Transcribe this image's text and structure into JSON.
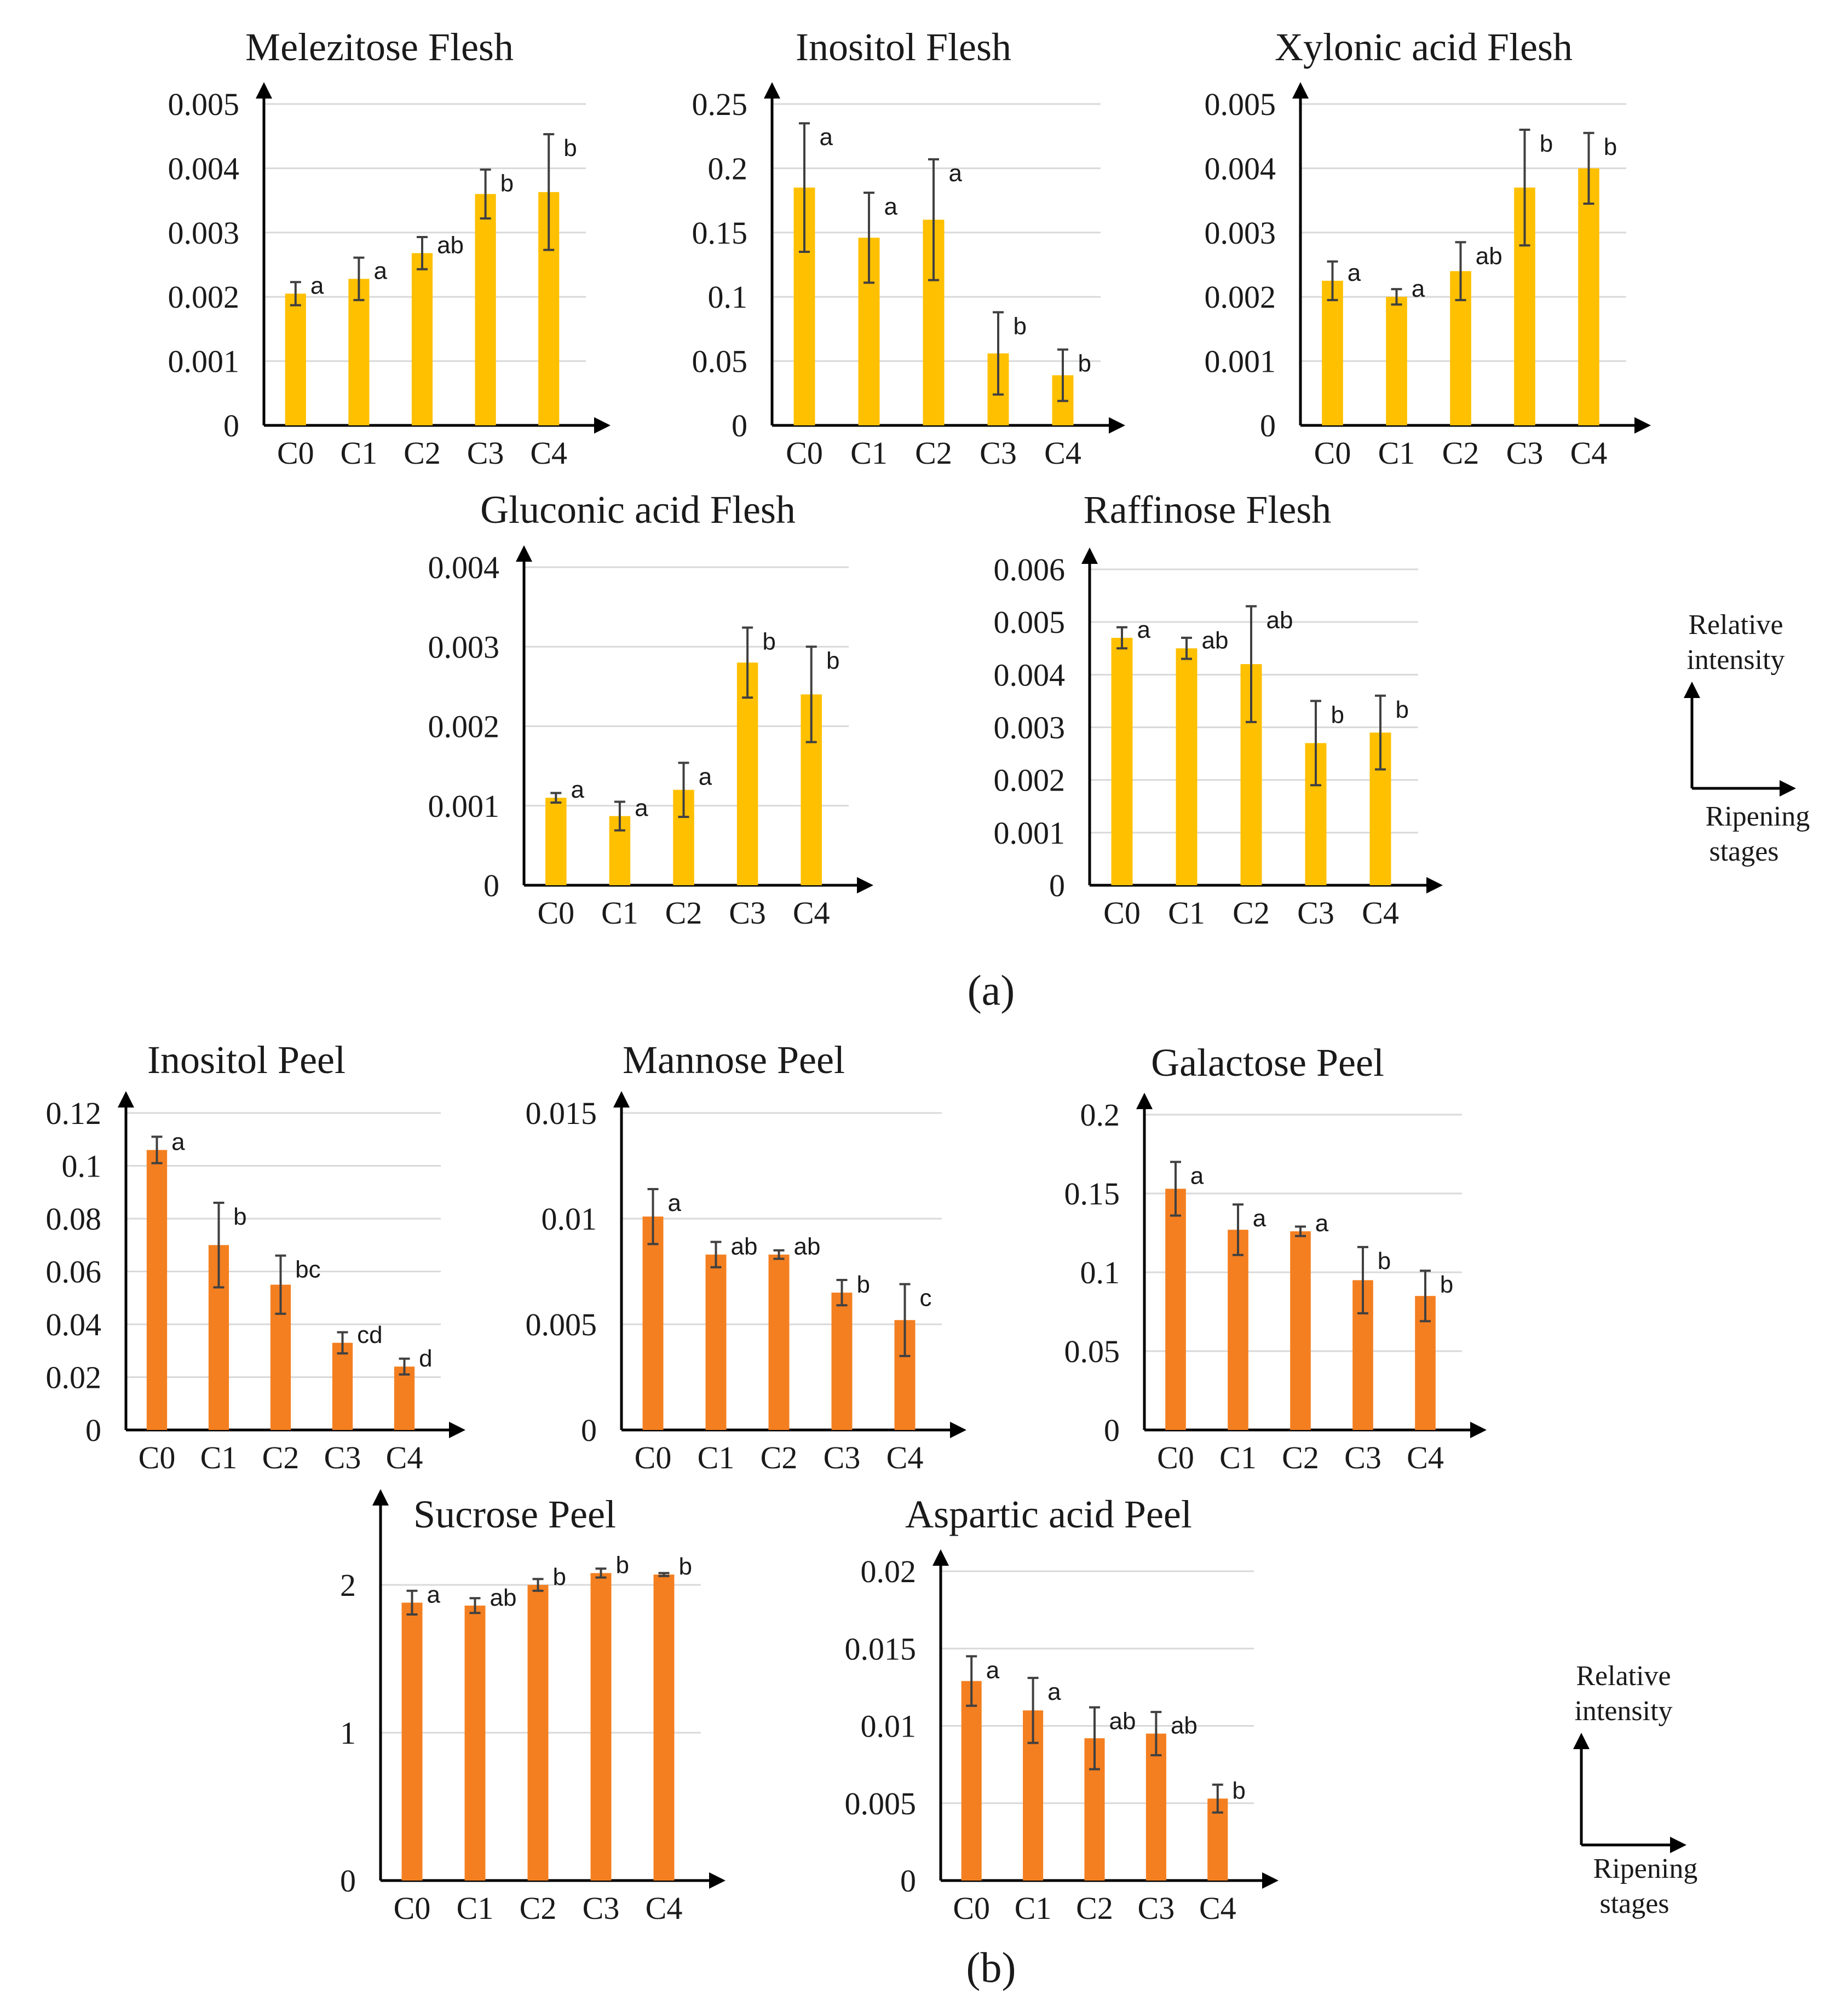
{
  "figure": {
    "panel_labels": [
      "(a)",
      "(b)"
    ],
    "legend_a": {
      "y_label_line1": "Relative",
      "y_label_line2": "intensity",
      "x_label_line1": "Ripening",
      "x_label_line2": "stages"
    },
    "legend_b": {
      "y_label_line1": "Relative",
      "y_label_line2": "intensity",
      "x_label_line1": "Ripening",
      "x_label_line2": "stages"
    }
  },
  "colors": {
    "flesh_bar": "#FFC000",
    "peel_bar": "#F47F20",
    "error_bar": "#404040",
    "grid": "#d9d9d9",
    "axis": "#000000"
  },
  "chart_data": [
    {
      "type": "bar",
      "title": "Melezitose Flesh",
      "group": "a",
      "categories": [
        "C0",
        "C1",
        "C2",
        "C3",
        "C4"
      ],
      "values": [
        0.00205,
        0.00228,
        0.00268,
        0.0036,
        0.00363
      ],
      "errors": [
        0.00018,
        0.00033,
        0.00025,
        0.00038,
        0.0009
      ],
      "significance": [
        "a",
        "a",
        "ab",
        "b",
        "b"
      ],
      "ylim": [
        0,
        0.005
      ],
      "yticks": [
        "0",
        "0.001",
        "0.002",
        "0.003",
        "0.004",
        "0.005"
      ],
      "xlabel": "",
      "ylabel": ""
    },
    {
      "type": "bar",
      "title": "Inositol Flesh",
      "group": "a",
      "categories": [
        "C0",
        "C1",
        "C2",
        "C3",
        "C4"
      ],
      "values": [
        0.185,
        0.146,
        0.16,
        0.056,
        0.039
      ],
      "errors": [
        0.05,
        0.035,
        0.047,
        0.032,
        0.02
      ],
      "significance": [
        "a",
        "a",
        "a",
        "b",
        "b"
      ],
      "ylim": [
        0,
        0.25
      ],
      "yticks": [
        "0",
        "0.05",
        "0.1",
        "0.15",
        "0.2",
        "0.25"
      ],
      "xlabel": "",
      "ylabel": ""
    },
    {
      "type": "bar",
      "title": "Xylonic acid Flesh",
      "group": "a",
      "categories": [
        "C0",
        "C1",
        "C2",
        "C3",
        "C4"
      ],
      "values": [
        0.00225,
        0.002,
        0.0024,
        0.0037,
        0.004
      ],
      "errors": [
        0.0003,
        0.00012,
        0.00045,
        0.0009,
        0.00055
      ],
      "significance": [
        "a",
        "a",
        "ab",
        "b",
        "b"
      ],
      "ylim": [
        0,
        0.005
      ],
      "yticks": [
        "0",
        "0.001",
        "0.002",
        "0.003",
        "0.004",
        "0.005"
      ],
      "xlabel": "",
      "ylabel": ""
    },
    {
      "type": "bar",
      "title": "Gluconic acid Flesh",
      "group": "a",
      "categories": [
        "C0",
        "C1",
        "C2",
        "C3",
        "C4"
      ],
      "values": [
        0.0011,
        0.00087,
        0.0012,
        0.0028,
        0.0024
      ],
      "errors": [
        6e-05,
        0.00018,
        0.00034,
        0.00044,
        0.0006
      ],
      "significance": [
        "a",
        "a",
        "a",
        "b",
        "b"
      ],
      "ylim": [
        0,
        0.004
      ],
      "yticks": [
        "0",
        "0.001",
        "0.002",
        "0.003",
        "0.004"
      ],
      "xlabel": "",
      "ylabel": ""
    },
    {
      "type": "bar",
      "title": "Raffinose Flesh",
      "group": "a",
      "categories": [
        "C0",
        "C1",
        "C2",
        "C3",
        "C4"
      ],
      "values": [
        0.0047,
        0.0045,
        0.0042,
        0.0027,
        0.0029
      ],
      "errors": [
        0.0002,
        0.0002,
        0.0011,
        0.0008,
        0.0007
      ],
      "significance": [
        "a",
        "ab",
        "ab",
        "b",
        "b"
      ],
      "ylim": [
        0,
        0.006
      ],
      "yticks": [
        "0",
        "0.001",
        "0.002",
        "0.003",
        "0.004",
        "0.005",
        "0.006"
      ],
      "xlabel": "",
      "ylabel": ""
    },
    {
      "type": "bar",
      "title": "Inositol Peel",
      "group": "b",
      "categories": [
        "C0",
        "C1",
        "C2",
        "C3",
        "C4"
      ],
      "values": [
        0.106,
        0.07,
        0.055,
        0.033,
        0.024
      ],
      "errors": [
        0.005,
        0.016,
        0.011,
        0.004,
        0.003
      ],
      "significance": [
        "a",
        "b",
        "bc",
        "cd",
        "d"
      ],
      "ylim": [
        0,
        0.12
      ],
      "yticks": [
        "0",
        "0.02",
        "0.04",
        "0.06",
        "0.08",
        "0.1",
        "0.12"
      ],
      "xlabel": "",
      "ylabel": ""
    },
    {
      "type": "bar",
      "title": "Mannose Peel",
      "group": "b",
      "categories": [
        "C0",
        "C1",
        "C2",
        "C3",
        "C4"
      ],
      "values": [
        0.0101,
        0.0083,
        0.0083,
        0.0065,
        0.0052
      ],
      "errors": [
        0.0013,
        0.0006,
        0.0002,
        0.0006,
        0.0017
      ],
      "significance": [
        "a",
        "ab",
        "ab",
        "b",
        "c"
      ],
      "ylim": [
        0,
        0.015
      ],
      "yticks": [
        "0",
        "0.005",
        "0.01",
        "0.015"
      ],
      "xlabel": "",
      "ylabel": ""
    },
    {
      "type": "bar",
      "title": "Galactose Peel",
      "group": "b",
      "categories": [
        "C0",
        "C1",
        "C2",
        "C3",
        "C4"
      ],
      "values": [
        0.153,
        0.127,
        0.126,
        0.095,
        0.085
      ],
      "errors": [
        0.017,
        0.016,
        0.003,
        0.021,
        0.016
      ],
      "significance": [
        "a",
        "a",
        "a",
        "b",
        "b"
      ],
      "ylim": [
        0,
        0.2
      ],
      "yticks": [
        "0",
        "0.05",
        "0.1",
        "0.15",
        "0.2"
      ],
      "xlabel": "",
      "ylabel": ""
    },
    {
      "type": "bar",
      "title": "Sucrose Peel",
      "group": "b",
      "categories": [
        "C0",
        "C1",
        "C2",
        "C3",
        "C4"
      ],
      "values": [
        1.88,
        1.86,
        2.0,
        2.08,
        2.07
      ],
      "errors": [
        0.08,
        0.05,
        0.04,
        0.03,
        0.01
      ],
      "significance": [
        "a",
        "ab",
        "b",
        "b",
        "b"
      ],
      "ylim": [
        0,
        2.5
      ],
      "yticks": [
        "0",
        "1",
        "2"
      ],
      "ytick_values": [
        0,
        1,
        2
      ],
      "xlabel": "",
      "ylabel": ""
    },
    {
      "type": "bar",
      "title": "Aspartic acid Peel",
      "group": "b",
      "categories": [
        "C0",
        "C1",
        "C2",
        "C3",
        "C4"
      ],
      "values": [
        0.0129,
        0.011,
        0.0092,
        0.0095,
        0.0053
      ],
      "errors": [
        0.0016,
        0.0021,
        0.002,
        0.0014,
        0.0009
      ],
      "significance": [
        "a",
        "a",
        "ab",
        "ab",
        "b"
      ],
      "ylim": [
        0,
        0.02
      ],
      "yticks": [
        "0",
        "0.005",
        "0.01",
        "0.015",
        "0.02"
      ],
      "xlabel": "",
      "ylabel": ""
    }
  ]
}
